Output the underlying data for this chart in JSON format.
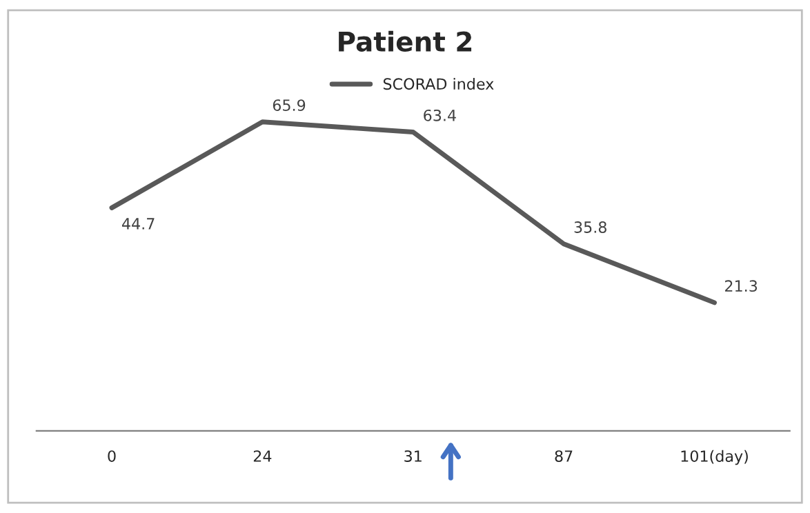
{
  "chart_data": {
    "type": "line",
    "title": "Patient 2",
    "categories": [
      "0",
      "24",
      "31",
      "87",
      "101(day)"
    ],
    "series": [
      {
        "name": "SCORAD index",
        "color": "#595959",
        "values": [
          44.7,
          65.9,
          63.4,
          35.8,
          21.3
        ]
      }
    ],
    "tick_labels": "x",
    "data_labels": true,
    "legend": "top",
    "grid": false,
    "marker": "none",
    "line_style": "solid"
  }
}
